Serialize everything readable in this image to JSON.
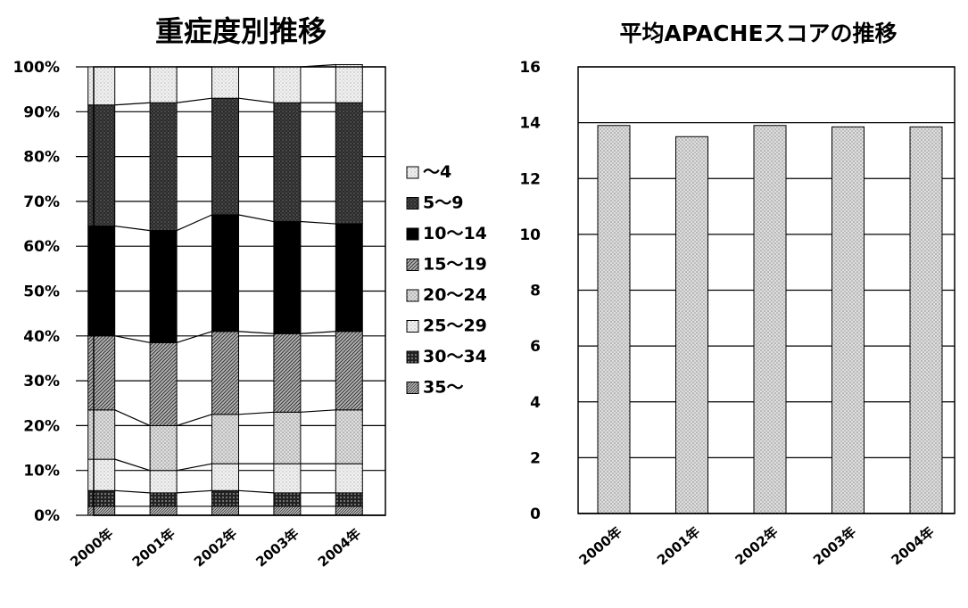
{
  "chart_data": [
    {
      "type": "bar",
      "stacked": true,
      "normalized": true,
      "title": "重症度別推移",
      "categories": [
        "2000年",
        "2001年",
        "2002年",
        "2003年",
        "2004年"
      ],
      "ylim": [
        0,
        100
      ],
      "yticks": [
        "0%",
        "10%",
        "20%",
        "30%",
        "40%",
        "50%",
        "60%",
        "70%",
        "80%",
        "90%",
        "100%"
      ],
      "grid": true,
      "legend_position": "right",
      "series_lines": true,
      "series": [
        {
          "name": "35〜",
          "values": [
            2,
            2,
            2,
            2,
            2
          ],
          "color": "#a0a0a0",
          "pattern": "diag-dense"
        },
        {
          "name": "30〜34",
          "values": [
            3.5,
            3,
            3.5,
            3,
            3
          ],
          "color": "#3a3a3a",
          "pattern": "diag-dark"
        },
        {
          "name": "25〜29",
          "values": [
            7,
            5,
            6,
            6.5,
            6.5
          ],
          "color": "#dcdcdc",
          "pattern": "dots-light"
        },
        {
          "name": "20〜24",
          "values": [
            11,
            10,
            11,
            11.5,
            12
          ],
          "color": "#c4c4c4",
          "pattern": "dots"
        },
        {
          "name": "15〜19",
          "values": [
            16.5,
            18.5,
            18.5,
            17.5,
            17.5
          ],
          "color": "#888888",
          "pattern": "diag"
        },
        {
          "name": "10〜14",
          "values": [
            24.5,
            25,
            26,
            25,
            24
          ],
          "color": "#000000",
          "pattern": "solid"
        },
        {
          "name": "5〜9",
          "values": [
            27,
            28.5,
            26,
            26.5,
            27
          ],
          "color": "#2a2a2a",
          "pattern": "dark-dots"
        },
        {
          "name": "〜4",
          "values": [
            8.5,
            8,
            7,
            8,
            8.5
          ],
          "color": "#d8d8d8",
          "pattern": "dots-light"
        }
      ],
      "legend_order": [
        "〜4",
        "5〜9",
        "10〜14",
        "15〜19",
        "20〜24",
        "25〜29",
        "30〜34",
        "35〜"
      ]
    },
    {
      "type": "bar",
      "title": "平均APACHEスコアの推移",
      "categories": [
        "2000年",
        "2001年",
        "2002年",
        "2003年",
        "2004年"
      ],
      "values": [
        13.9,
        13.5,
        13.9,
        13.85,
        13.85
      ],
      "ylim": [
        0,
        16
      ],
      "yticks": [
        "0",
        "2",
        "4",
        "6",
        "8",
        "10",
        "12",
        "14",
        "16"
      ],
      "grid": true,
      "color": "#b8b8b8",
      "pattern": "dots"
    }
  ]
}
